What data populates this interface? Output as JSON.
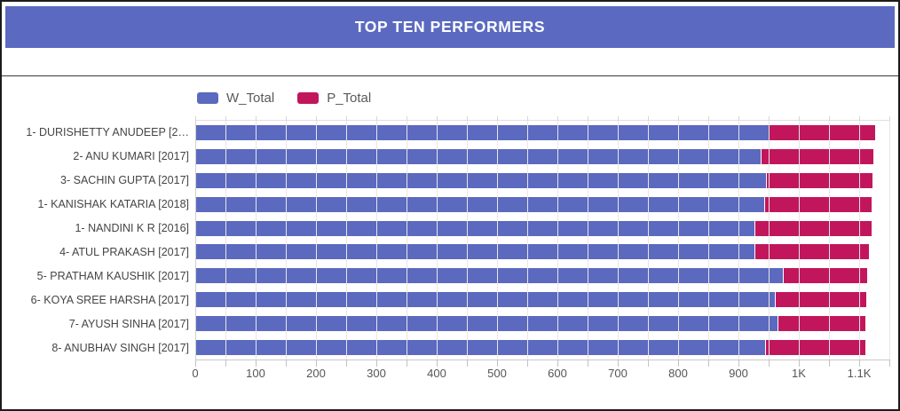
{
  "header": {
    "title": "TOP TEN PERFORMERS"
  },
  "colors": {
    "header_bg": "#5b6ac0",
    "w_total": "#5b69bf",
    "p_total": "#c2165c",
    "gridline": "#e7e7e7",
    "frame_border": "#1c1c1c"
  },
  "legend": {
    "items": [
      {
        "label": "W_Total",
        "color": "#5b69bf"
      },
      {
        "label": "P_Total",
        "color": "#c2165c"
      }
    ]
  },
  "chart_data": {
    "type": "bar",
    "orientation": "horizontal",
    "stacked": true,
    "title": "TOP TEN PERFORMERS",
    "xlabel": "",
    "ylabel": "",
    "grid": true,
    "legend_position": "top-left",
    "xlim": [
      0,
      1150
    ],
    "minor_tick_step": 50,
    "categories": [
      "1- DURISHETTY ANUDEEP [2…",
      "2- ANU KUMARI [2017]",
      "3- SACHIN GUPTA [2017]",
      "1- KANISHAK KATARIA [2018]",
      "1- NANDINI K R [2016]",
      "4- ATUL PRAKASH [2017]",
      "5- PRATHAM KAUSHIK [2017]",
      "6- KOYA SREE HARSHA [2017]",
      "7- AYUSH SINHA [2017]",
      "8- ANUBHAV SINGH [2017]"
    ],
    "series": [
      {
        "name": "W_Total",
        "color": "#5b69bf",
        "values": [
          950,
          937,
          946,
          942,
          927,
          926,
          973,
          961,
          964,
          944
        ]
      },
      {
        "name": "P_Total",
        "color": "#c2165c",
        "values": [
          176,
          187,
          176,
          179,
          193,
          190,
          140,
          151,
          147,
          166
        ]
      }
    ],
    "x_major_ticks": [
      {
        "value": 0,
        "label": "0"
      },
      {
        "value": 100,
        "label": "100"
      },
      {
        "value": 200,
        "label": "200"
      },
      {
        "value": 300,
        "label": "300"
      },
      {
        "value": 400,
        "label": "400"
      },
      {
        "value": 500,
        "label": "500"
      },
      {
        "value": 600,
        "label": "600"
      },
      {
        "value": 700,
        "label": "700"
      },
      {
        "value": 800,
        "label": "800"
      },
      {
        "value": 900,
        "label": "900"
      },
      {
        "value": 1000,
        "label": "1K"
      },
      {
        "value": 1100,
        "label": "1.1K"
      }
    ]
  }
}
